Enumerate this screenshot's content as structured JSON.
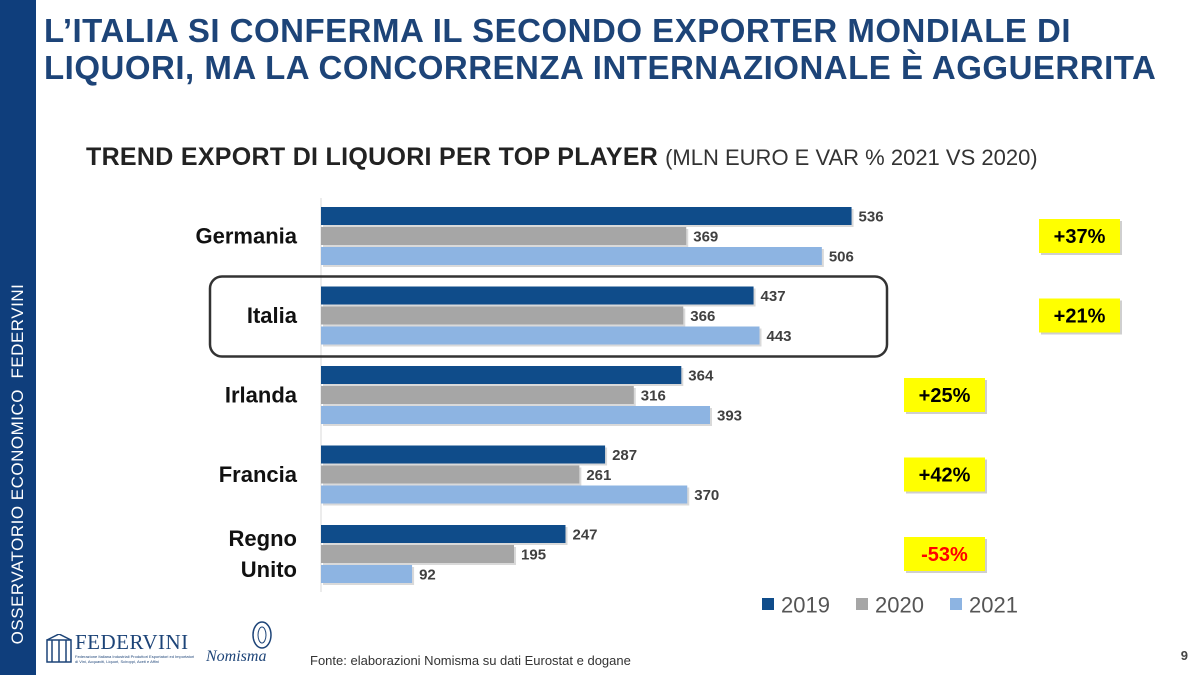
{
  "sidebar_text": "OSSERVATORIO ECONOMICO  FEDERVINI",
  "slide_title": "L’ITALIA SI CONFERMA IL SECONDO EXPORTER MONDIALE DI LIQUORI, MA LA CONCORRENZA INTERNAZIONALE È AGGUERRITA",
  "chart_title_main": "TREND EXPORT DI LIQUORI PER TOP PLAYER",
  "chart_title_sub": "(MLN EURO E VAR % 2021 VS 2020)",
  "chart_data": {
    "type": "bar",
    "orientation": "horizontal",
    "title": "TREND EXPORT DI LIQUORI PER TOP PLAYER (MLN EURO E VAR % 2021 VS 2020)",
    "categories": [
      "Germania",
      "Italia",
      "Irlanda",
      "Francia",
      "Regno Unito"
    ],
    "category_lines": [
      [
        "Germania"
      ],
      [
        "Italia"
      ],
      [
        "Irlanda"
      ],
      [
        "Francia"
      ],
      [
        "Regno",
        "Unito"
      ]
    ],
    "series": [
      {
        "name": "2019",
        "color": "#0f4c8a",
        "values": [
          536,
          437,
          364,
          287,
          247
        ]
      },
      {
        "name": "2020",
        "color": "#a6a6a6",
        "values": [
          369,
          366,
          316,
          261,
          195
        ]
      },
      {
        "name": "2021",
        "color": "#8db4e2",
        "values": [
          506,
          443,
          393,
          370,
          92
        ]
      }
    ],
    "variations": [
      "+37%",
      "+21%",
      "+25%",
      "+42%",
      "-53%"
    ],
    "variation_colors": [
      "#000000",
      "#000000",
      "#000000",
      "#000000",
      "#ff0000"
    ],
    "highlighted_category": "Italia",
    "xlim": [
      0,
      590
    ],
    "legend_position": "bottom-right"
  },
  "colors": {
    "brand_blue": "#0f3e7c",
    "highlight_yellow": "#ffff00",
    "negative_red": "#ff0000"
  },
  "logos": {
    "federvini_name": "FEDERVINI",
    "federvini_subtitle": "Federazione Italiana Industriali Produttori Esportatori ed Importatori di Vini, Acquaviti, Liquori, Sciroppi, Aceti e Affini",
    "nomisma_name": "Nomisma"
  },
  "footer": {
    "source": "Fonte: elaborazioni Nomisma su dati Eurostat e dogane",
    "page_number": "9"
  }
}
